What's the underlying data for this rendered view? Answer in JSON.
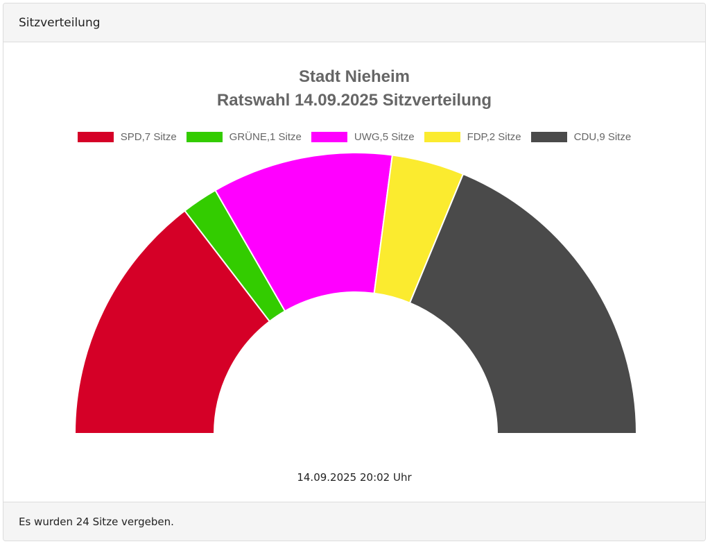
{
  "card": {
    "header_title": "Sitzverteilung",
    "footer_text": "Es wurden 24 Sitze vergeben.",
    "timestamp": "14.09.2025 20:02 Uhr"
  },
  "legend": [
    {
      "label": "SPD,7 Sitze",
      "color": "#d50027"
    },
    {
      "label": "GRÜNE,1 Sitze",
      "color": "#33cc00"
    },
    {
      "label": "UWG,5 Sitze",
      "color": "#ff00ff"
    },
    {
      "label": "FDP,2 Sitze",
      "color": "#fbeb2f"
    },
    {
      "label": "CDU,9 Sitze",
      "color": "#4a4a4a"
    }
  ],
  "chart_data": {
    "type": "pie",
    "variant": "half-donut",
    "title": "Stadt Nieheim",
    "subtitle": "Ratswahl 14.09.2025 Sitzverteilung",
    "categories": [
      "SPD",
      "GRÜNE",
      "UWG",
      "FDP",
      "CDU"
    ],
    "values": [
      7,
      1,
      5,
      2,
      9
    ],
    "colors": [
      "#d50027",
      "#33cc00",
      "#ff00ff",
      "#fbeb2f",
      "#4a4a4a"
    ],
    "total": 24,
    "unit": "Sitze",
    "legend_position": "top"
  }
}
